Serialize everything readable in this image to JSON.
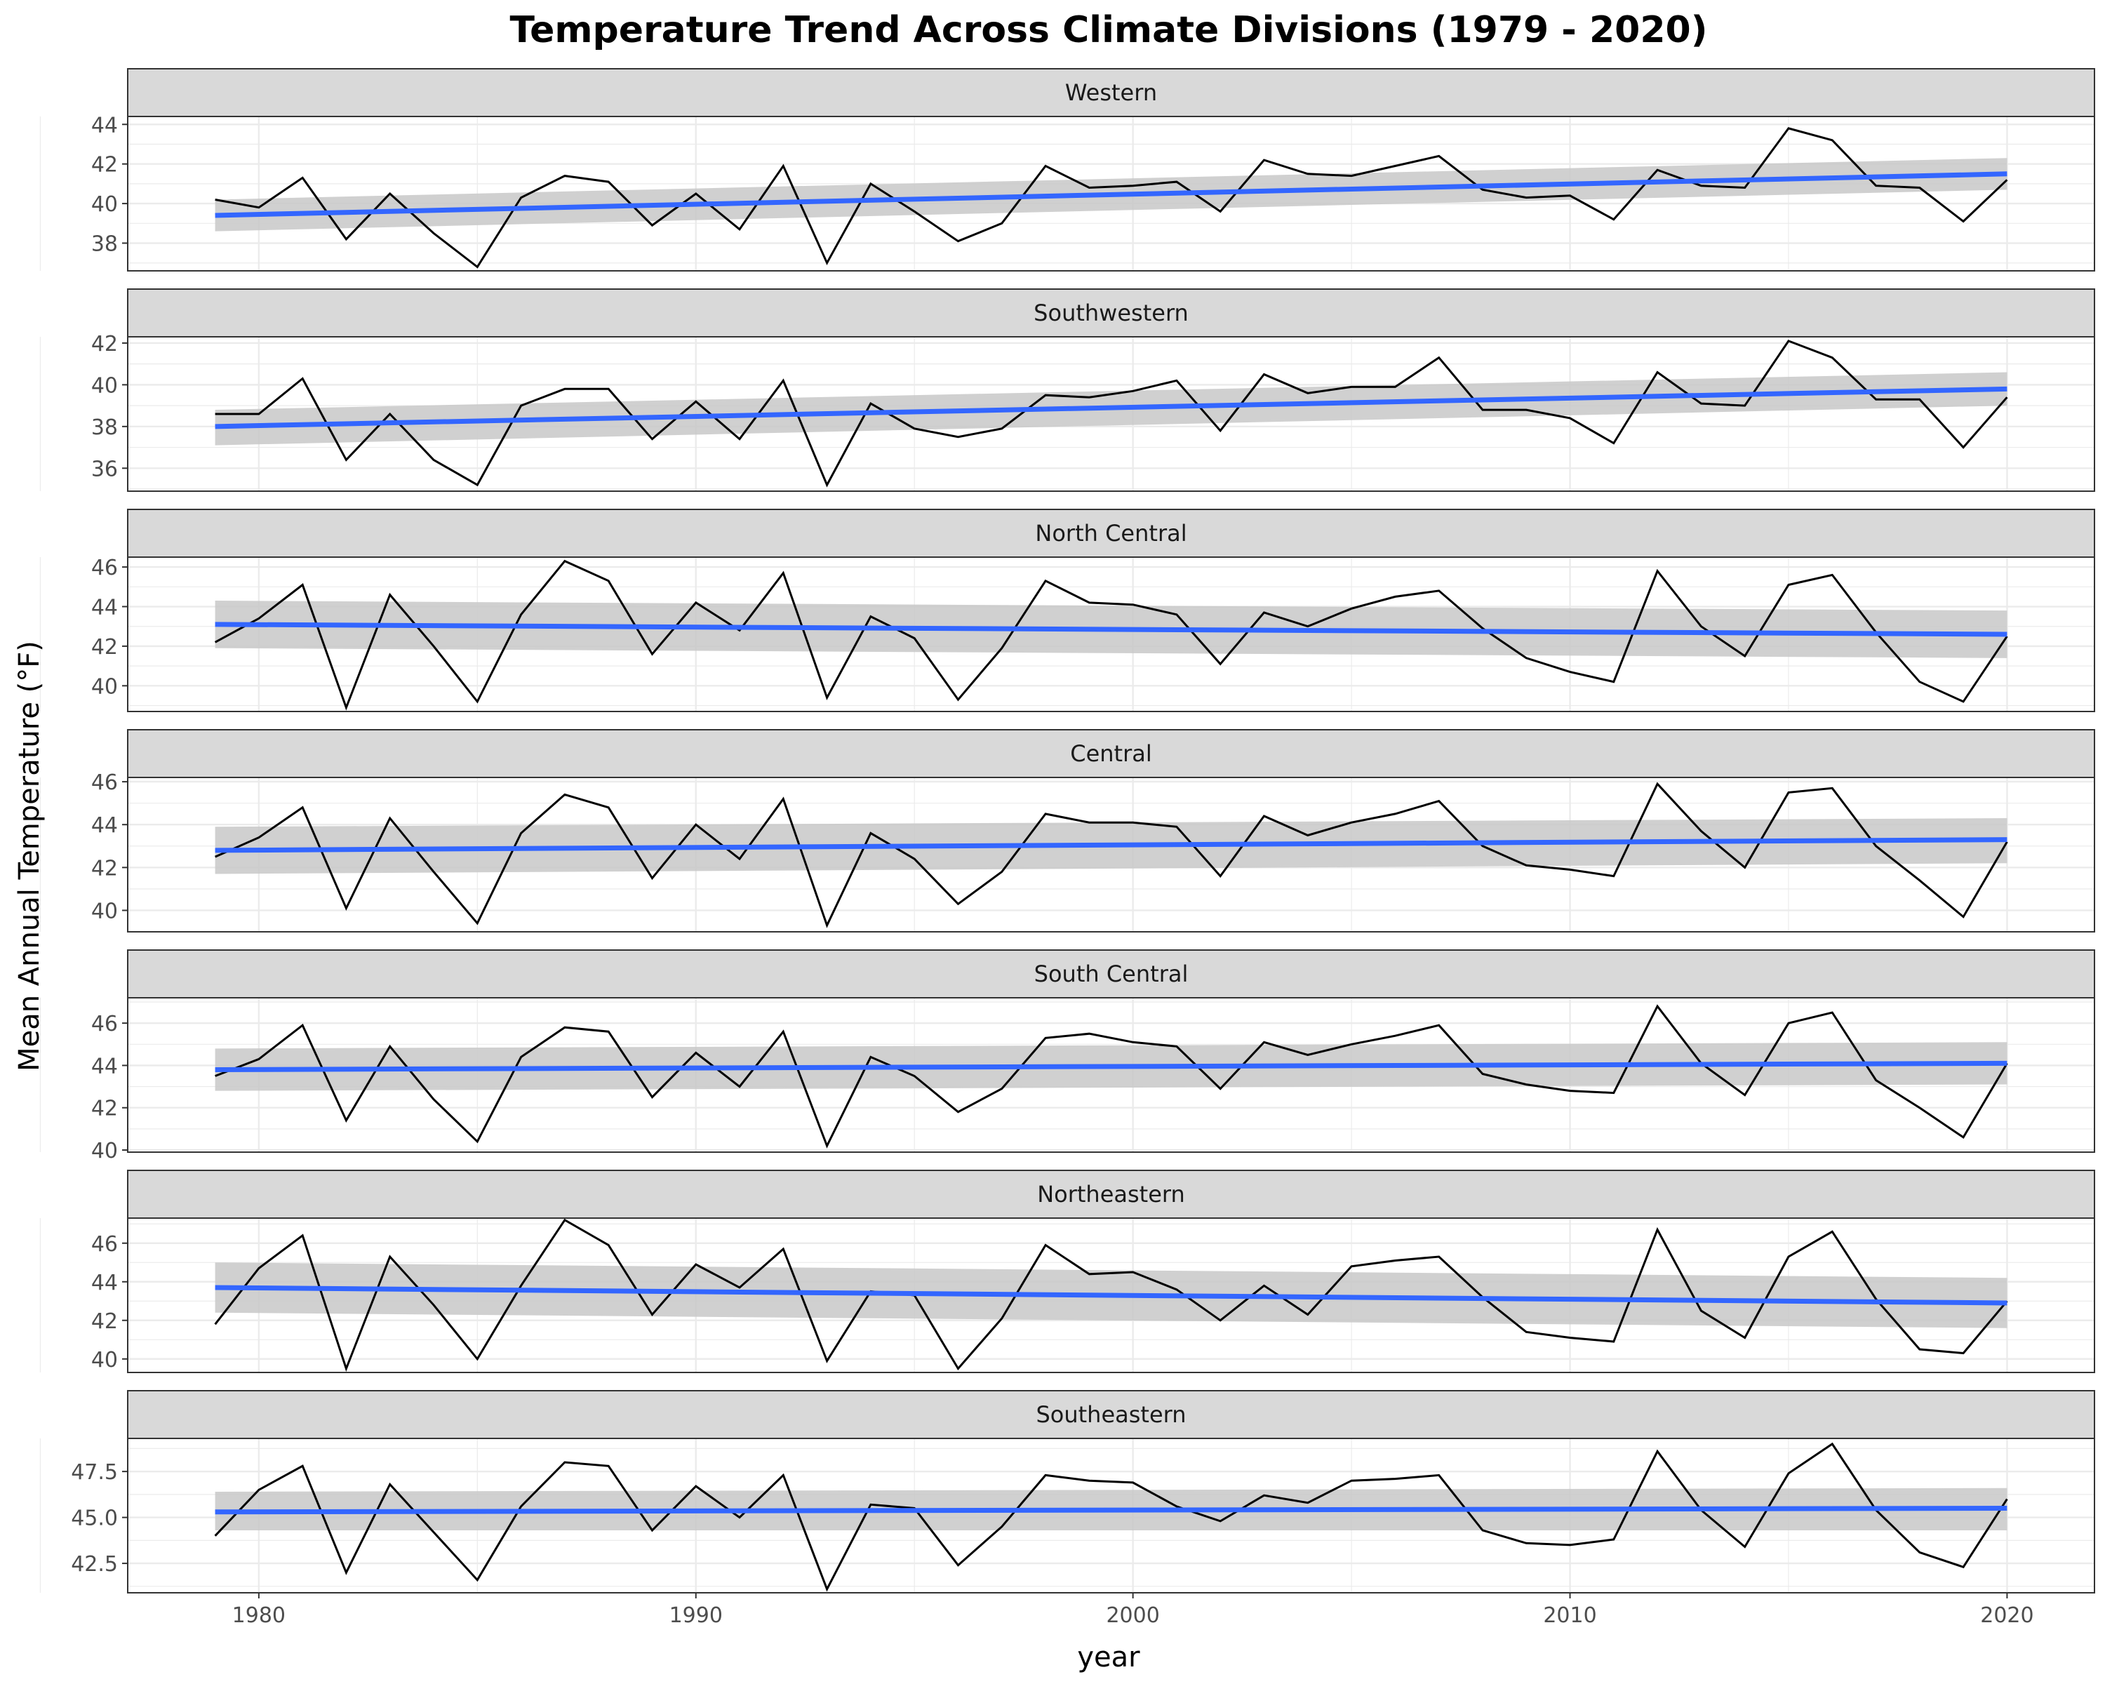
{
  "chart_data": {
    "type": "line",
    "title": "Temperature Trend Across Climate Divisions (1979 - 2020)",
    "xlabel": "year",
    "ylabel": "Mean Annual Temperature (°F)",
    "x_ticks": [
      1980,
      1990,
      2000,
      2010,
      2020
    ],
    "xlim": [
      1977,
      2022
    ],
    "x": [
      1979,
      1980,
      1981,
      1982,
      1983,
      1984,
      1985,
      1986,
      1987,
      1988,
      1989,
      1990,
      1991,
      1992,
      1993,
      1994,
      1995,
      1996,
      1997,
      1998,
      1999,
      2000,
      2001,
      2002,
      2003,
      2004,
      2005,
      2006,
      2007,
      2008,
      2009,
      2010,
      2011,
      2012,
      2013,
      2014,
      2015,
      2016,
      2017,
      2018,
      2019,
      2020
    ],
    "colors": {
      "series": "#000000",
      "trend": "#3366FF",
      "band": "#c8c8c8",
      "strip": "#d9d9d9",
      "grid": "#ebebeb"
    },
    "panels": [
      {
        "name": "Western",
        "ylim": [
          36.6,
          44.4
        ],
        "y_ticks": [
          "38",
          "40",
          "42",
          "44"
        ],
        "y_tick_values": [
          38,
          40,
          42,
          44
        ],
        "values": [
          40.2,
          39.8,
          41.3,
          38.2,
          40.5,
          38.5,
          36.8,
          40.3,
          41.4,
          41.1,
          38.9,
          40.5,
          38.7,
          41.9,
          37.0,
          41.0,
          39.6,
          38.1,
          39.0,
          41.9,
          40.8,
          40.9,
          41.1,
          39.6,
          42.2,
          41.5,
          41.4,
          41.9,
          42.4,
          40.7,
          40.3,
          40.4,
          39.2,
          41.7,
          40.9,
          40.8,
          43.8,
          43.2,
          40.9,
          40.8,
          39.1,
          41.2
        ],
        "trend": [
          39.4,
          41.5
        ],
        "band": [
          [
            38.6,
            40.2
          ],
          [
            40.7,
            42.3
          ]
        ]
      },
      {
        "name": "Southwestern",
        "ylim": [
          34.9,
          42.3
        ],
        "y_ticks": [
          "36",
          "38",
          "40",
          "42"
        ],
        "y_tick_values": [
          36,
          38,
          40,
          42
        ],
        "values": [
          38.6,
          38.6,
          40.3,
          36.4,
          38.6,
          36.4,
          35.2,
          39.0,
          39.8,
          39.8,
          37.4,
          39.2,
          37.4,
          40.2,
          35.2,
          39.1,
          37.9,
          37.5,
          37.9,
          39.5,
          39.4,
          39.7,
          40.2,
          37.8,
          40.5,
          39.6,
          39.9,
          39.9,
          41.3,
          38.8,
          38.8,
          38.4,
          37.2,
          40.6,
          39.1,
          39.0,
          42.1,
          41.3,
          39.3,
          39.3,
          37.0,
          39.4
        ],
        "trend": [
          38.0,
          39.8
        ],
        "band": [
          [
            37.1,
            38.8
          ],
          [
            39.0,
            40.6
          ]
        ]
      },
      {
        "name": "North Central",
        "ylim": [
          38.7,
          46.5
        ],
        "y_ticks": [
          "40",
          "42",
          "44",
          "46"
        ],
        "y_tick_values": [
          40,
          42,
          44,
          46
        ],
        "values": [
          42.2,
          43.4,
          45.1,
          38.9,
          44.6,
          42.0,
          39.2,
          43.6,
          46.3,
          45.3,
          41.6,
          44.2,
          42.8,
          45.7,
          39.4,
          43.5,
          42.4,
          39.3,
          41.9,
          45.3,
          44.2,
          44.1,
          43.6,
          41.1,
          43.7,
          43.0,
          43.9,
          44.5,
          44.8,
          42.9,
          41.4,
          40.7,
          40.2,
          45.8,
          43.0,
          41.5,
          45.1,
          45.6,
          42.7,
          40.2,
          39.2,
          42.5
        ],
        "trend": [
          43.1,
          42.6
        ],
        "band": [
          [
            41.9,
            44.3
          ],
          [
            41.4,
            43.8
          ]
        ]
      },
      {
        "name": "Central",
        "ylim": [
          39.0,
          46.2
        ],
        "y_ticks": [
          "40",
          "42",
          "44",
          "46"
        ],
        "y_tick_values": [
          40,
          42,
          44,
          46
        ],
        "values": [
          42.5,
          43.4,
          44.8,
          40.1,
          44.3,
          41.8,
          39.4,
          43.6,
          45.4,
          44.8,
          41.5,
          44.0,
          42.4,
          45.2,
          39.3,
          43.6,
          42.4,
          40.3,
          41.8,
          44.5,
          44.1,
          44.1,
          43.9,
          41.6,
          44.4,
          43.5,
          44.1,
          44.5,
          45.1,
          43.0,
          42.1,
          41.9,
          41.6,
          45.9,
          43.7,
          42.0,
          45.5,
          45.7,
          43.0,
          41.4,
          39.7,
          43.2
        ],
        "trend": [
          42.8,
          43.3
        ],
        "band": [
          [
            41.7,
            43.9
          ],
          [
            42.2,
            44.3
          ]
        ]
      },
      {
        "name": "South Central",
        "ylim": [
          39.9,
          47.2
        ],
        "y_ticks": [
          "40",
          "42",
          "44",
          "46"
        ],
        "y_tick_values": [
          40,
          42,
          44,
          46
        ],
        "values": [
          43.5,
          44.3,
          45.9,
          41.4,
          44.9,
          42.4,
          40.4,
          44.4,
          45.8,
          45.6,
          42.5,
          44.6,
          43.0,
          45.6,
          40.2,
          44.4,
          43.5,
          41.8,
          42.9,
          45.3,
          45.5,
          45.1,
          44.9,
          42.9,
          45.1,
          44.5,
          45.0,
          45.4,
          45.9,
          43.6,
          43.1,
          42.8,
          42.7,
          46.8,
          44.1,
          42.6,
          46.0,
          46.5,
          43.3,
          42.0,
          40.6,
          44.1
        ],
        "trend": [
          43.8,
          44.1
        ],
        "band": [
          [
            42.8,
            44.8
          ],
          [
            43.1,
            45.1
          ]
        ]
      },
      {
        "name": "Northeastern",
        "ylim": [
          39.3,
          47.3
        ],
        "y_ticks": [
          "40",
          "42",
          "44",
          "46"
        ],
        "y_tick_values": [
          40,
          42,
          44,
          46
        ],
        "values": [
          41.8,
          44.7,
          46.4,
          39.5,
          45.3,
          42.8,
          40.0,
          43.8,
          47.2,
          45.9,
          42.3,
          44.9,
          43.7,
          45.7,
          39.9,
          43.5,
          43.3,
          39.5,
          42.1,
          45.9,
          44.4,
          44.5,
          43.6,
          42.0,
          43.8,
          42.3,
          44.8,
          45.1,
          45.3,
          43.2,
          41.4,
          41.1,
          40.9,
          46.7,
          42.5,
          41.1,
          45.3,
          46.6,
          43.1,
          40.5,
          40.3,
          43.0
        ],
        "trend": [
          43.7,
          42.9
        ],
        "band": [
          [
            42.4,
            45.0
          ],
          [
            41.6,
            44.2
          ]
        ]
      },
      {
        "name": "Southeastern",
        "ylim": [
          40.9,
          49.3
        ],
        "y_ticks": [
          "42.5",
          "45.0",
          "47.5"
        ],
        "y_tick_values": [
          42.5,
          45.0,
          47.5
        ],
        "values": [
          44.0,
          46.5,
          47.8,
          42.0,
          46.8,
          44.2,
          41.6,
          45.6,
          48.0,
          47.8,
          44.3,
          46.7,
          45.0,
          47.3,
          41.1,
          45.7,
          45.5,
          42.4,
          44.5,
          47.3,
          47.0,
          46.9,
          45.6,
          44.8,
          46.2,
          45.8,
          47.0,
          47.1,
          47.3,
          44.3,
          43.6,
          43.5,
          43.8,
          48.6,
          45.4,
          43.4,
          47.4,
          49.0,
          45.4,
          43.1,
          42.3,
          46.0
        ],
        "trend": [
          45.3,
          45.5
        ],
        "band": [
          [
            44.3,
            46.4
          ],
          [
            44.3,
            46.6
          ]
        ]
      }
    ]
  }
}
